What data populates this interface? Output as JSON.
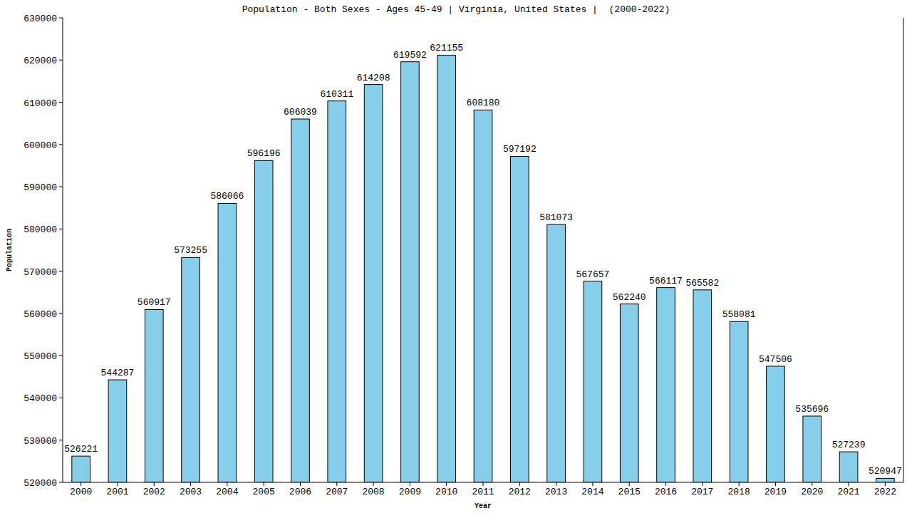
{
  "chart_data": {
    "type": "bar",
    "title": "Population - Both Sexes - Ages 45-49 | Virginia, United States |  (2000-2022)",
    "x_label": "Year",
    "y_label": "Population",
    "categories": [
      "2000",
      "2001",
      "2002",
      "2003",
      "2004",
      "2005",
      "2006",
      "2007",
      "2008",
      "2009",
      "2010",
      "2011",
      "2012",
      "2013",
      "2014",
      "2015",
      "2016",
      "2017",
      "2018",
      "2019",
      "2020",
      "2021",
      "2022"
    ],
    "values": [
      526221,
      544287,
      560917,
      573255,
      586066,
      596196,
      606039,
      610311,
      614208,
      619592,
      621155,
      608180,
      597192,
      581073,
      567657,
      562240,
      566117,
      565582,
      558081,
      547506,
      535696,
      527239,
      520947
    ],
    "color": "#87ceeb",
    "ylim": [
      520000,
      630000
    ],
    "yticks": [
      520000,
      530000,
      540000,
      550000,
      560000,
      570000,
      580000,
      590000,
      600000,
      610000,
      620000,
      630000
    ],
    "grid": false,
    "data_labels": true
  }
}
